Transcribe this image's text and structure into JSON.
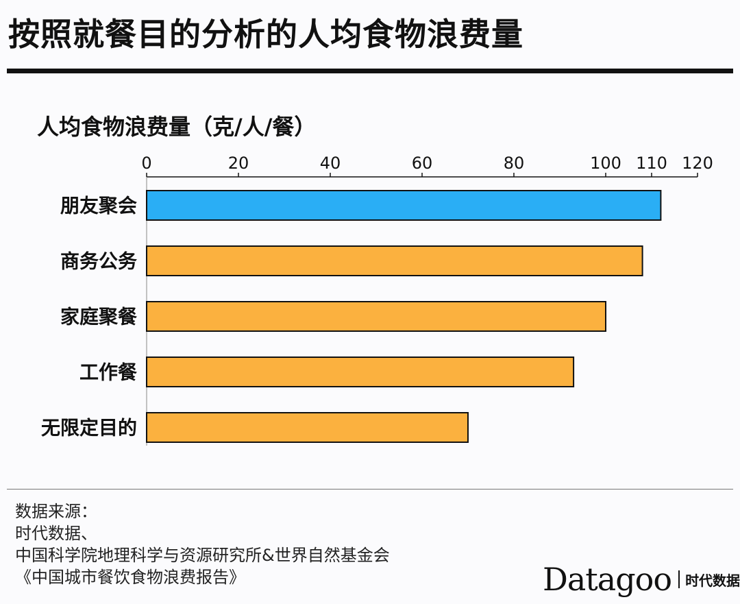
{
  "title": "按照就餐目的分析的人均食物浪费量",
  "chart_data": {
    "type": "bar",
    "orientation": "horizontal",
    "title": "人均食物浪费量（克/人/餐）",
    "categories": [
      "朋友聚会",
      "商务公务",
      "家庭聚餐",
      "工作餐",
      "无限定目的"
    ],
    "values": [
      112,
      108,
      100,
      93,
      70
    ],
    "xlim": [
      0,
      120
    ],
    "xticks": [
      0,
      20,
      40,
      60,
      80,
      100,
      110,
      120
    ],
    "grid": false,
    "colors": [
      "#2aaef5",
      "#fbb13f",
      "#fbb13f",
      "#fbb13f",
      "#fbb13f"
    ]
  },
  "source": {
    "label": "数据来源：",
    "lines": [
      "时代数据、",
      "中国科学院地理科学与资源研究所&世界自然基金会",
      "《中国城市餐饮食物浪费报告》"
    ]
  },
  "logo": {
    "name": "Datagoo",
    "subtitle": "时代数据"
  }
}
